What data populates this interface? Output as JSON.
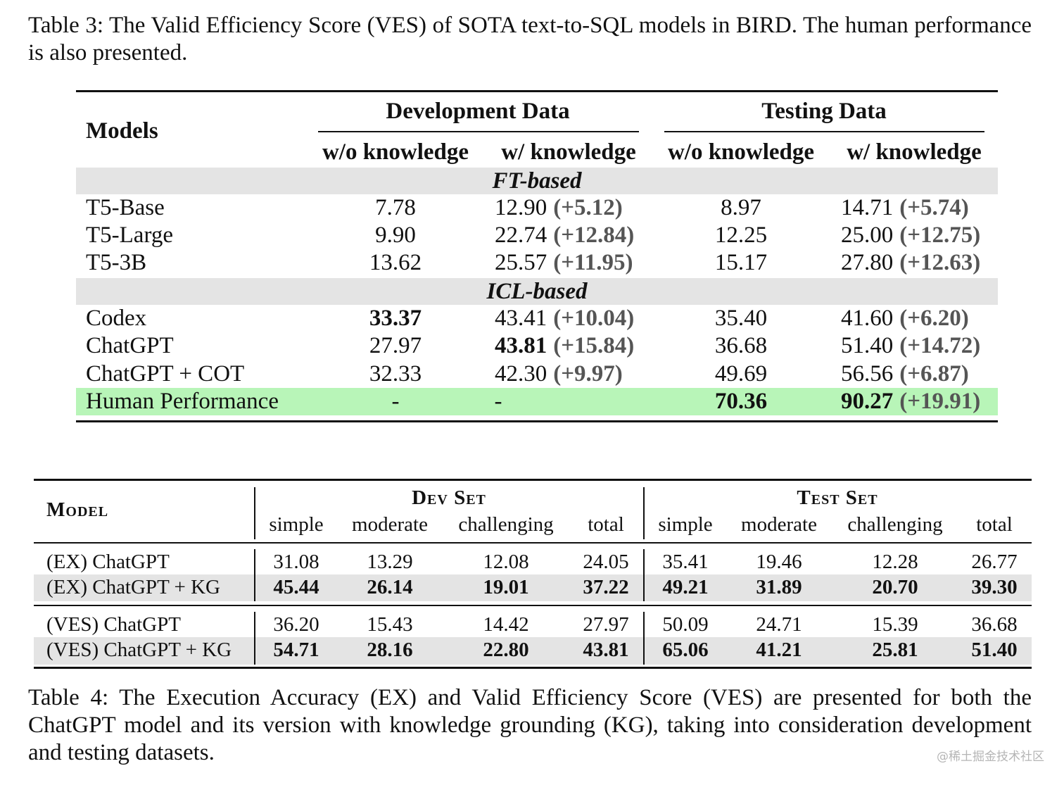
{
  "table3": {
    "caption": "Table 3: The Valid Efficiency Score (VES) of SOTA text-to-SQL models in BIRD. The human performance is also presented.",
    "headers": {
      "models": "Models",
      "dev": "Development Data",
      "test": "Testing Data",
      "wo": "w/o knowledge",
      "w": "w/ knowledge"
    },
    "sections": [
      "FT-based",
      "ICL-based"
    ],
    "rows": [
      {
        "model": "T5-Base",
        "dev_wo": "7.78",
        "dev_w": "12.90",
        "dev_delta": "(+5.12)",
        "test_wo": "8.97",
        "test_w": "14.71",
        "test_delta": "(+5.74)"
      },
      {
        "model": "T5-Large",
        "dev_wo": "9.90",
        "dev_w": "22.74",
        "dev_delta": "(+12.84)",
        "test_wo": "12.25",
        "test_w": "25.00",
        "test_delta": "(+12.75)"
      },
      {
        "model": "T5-3B",
        "dev_wo": "13.62",
        "dev_w": "25.57",
        "dev_delta": "(+11.95)",
        "test_wo": "15.17",
        "test_w": "27.80",
        "test_delta": "(+12.63)"
      },
      {
        "model": "Codex",
        "dev_wo": "33.37",
        "dev_w": "43.41",
        "dev_delta": "(+10.04)",
        "test_wo": "35.40",
        "test_w": "41.60",
        "test_delta": "(+6.20)"
      },
      {
        "model": "ChatGPT",
        "dev_wo": "27.97",
        "dev_w": "43.81",
        "dev_delta": "(+15.84)",
        "test_wo": "36.68",
        "test_w": "51.40",
        "test_delta": "(+14.72)"
      },
      {
        "model": "ChatGPT + COT",
        "dev_wo": "32.33",
        "dev_w": "42.30",
        "dev_delta": "(+9.97)",
        "test_wo": "49.69",
        "test_w": "56.56",
        "test_delta": "(+6.87)"
      },
      {
        "model": "Human Performance",
        "dev_wo": "-",
        "dev_w": "-",
        "dev_delta": "",
        "test_wo": "70.36",
        "test_w": "90.27",
        "test_delta": "(+19.91)"
      }
    ],
    "highlight_color": "#b8f5b8"
  },
  "table4": {
    "caption": "Table 4: The Execution Accuracy (EX) and Valid Efficiency Score (VES) are presented for both the ChatGPT model and its version with knowledge grounding (KG), taking into consideration development and testing datasets.",
    "headers": {
      "model": "Model",
      "dev": "Dev Set",
      "test": "Test Set",
      "cols": [
        "simple",
        "moderate",
        "challenging",
        "total",
        "simple",
        "moderate",
        "challenging",
        "total"
      ]
    },
    "rows": [
      {
        "model": "(EX) ChatGPT",
        "values": [
          "31.08",
          "13.29",
          "12.08",
          "24.05",
          "35.41",
          "19.46",
          "12.28",
          "26.77"
        ]
      },
      {
        "model": "(EX) ChatGPT + KG",
        "values": [
          "45.44",
          "26.14",
          "19.01",
          "37.22",
          "49.21",
          "31.89",
          "20.70",
          "39.30"
        ]
      },
      {
        "model": "(VES) ChatGPT",
        "values": [
          "36.20",
          "15.43",
          "14.42",
          "27.97",
          "50.09",
          "24.71",
          "15.39",
          "36.68"
        ]
      },
      {
        "model": "(VES) ChatGPT + KG",
        "values": [
          "54.71",
          "28.16",
          "22.80",
          "43.81",
          "65.06",
          "41.21",
          "25.81",
          "51.40"
        ]
      }
    ]
  },
  "watermark": "@稀土掘金技术社区"
}
